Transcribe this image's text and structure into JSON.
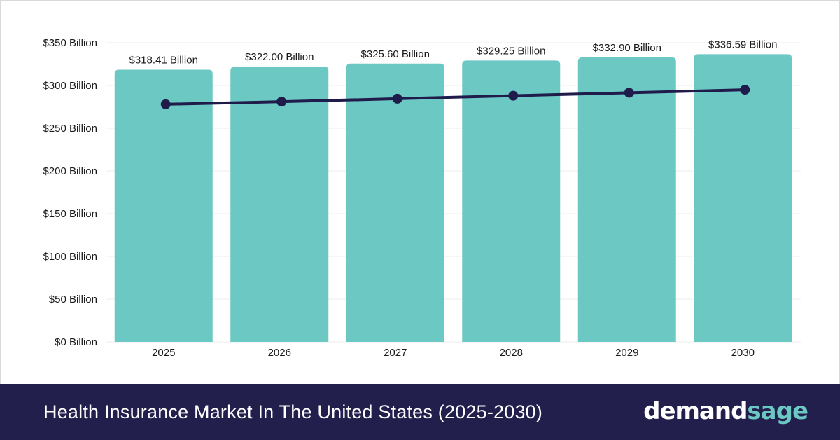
{
  "footer": {
    "title": "Health Insurance Market In The United States (2025-2030)",
    "logo_part1": "demand",
    "logo_part2": "sage"
  },
  "colors": {
    "bar": "#6cc8c3",
    "line": "#1f1b4a",
    "footer_bg": "#221f4d",
    "logo_accent": "#6cc8c3"
  },
  "chart_data": {
    "type": "bar",
    "categories": [
      "2025",
      "2026",
      "2027",
      "2028",
      "2029",
      "2030"
    ],
    "values": [
      318.41,
      322.0,
      325.6,
      329.25,
      332.9,
      336.59
    ],
    "data_labels": [
      "$318.41 Billion",
      "$322.00 Billion",
      "$325.60 Billion",
      "$329.25 Billion",
      "$332.90 Billion",
      "$336.59 Billion"
    ],
    "trend_line_values": [
      278,
      281,
      284.5,
      288,
      291.5,
      295
    ],
    "ylim": [
      0,
      350
    ],
    "y_ticks": [
      0,
      50,
      100,
      150,
      200,
      250,
      300,
      350
    ],
    "y_tick_labels": [
      "$0 Billion",
      "$50 Billion",
      "$100 Billion",
      "$150 Billion",
      "$200 Billion",
      "$250 Billion",
      "$300 Billion",
      "$350 Billion"
    ],
    "title": "",
    "xlabel": "",
    "ylabel": "",
    "grid": true,
    "legend": "none"
  }
}
